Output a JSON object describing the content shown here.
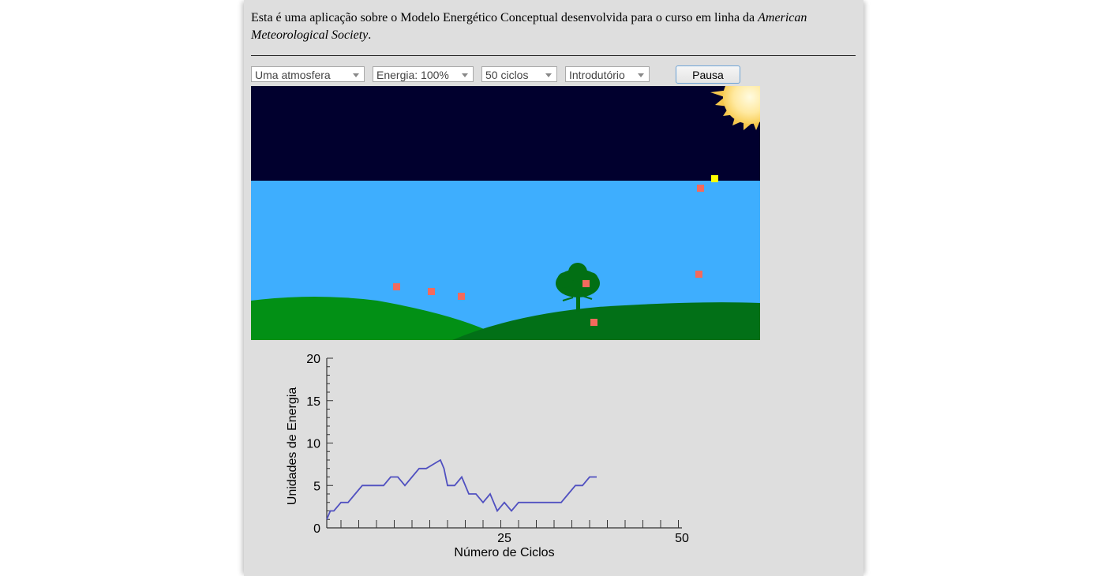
{
  "intro": {
    "text_before": "Esta é uma aplicação sobre o Modelo Energético Conceptual desenvolvida para o curso em linha da ",
    "italic": "American Meteorological Society",
    "text_after": "."
  },
  "controls": {
    "model_select": "Uma atmosfera",
    "energy_select": "Energia: 100%",
    "cycles_select": "50 ciclos",
    "level_select": "Introdutório",
    "pause_label": "Pausa"
  },
  "scene": {
    "colors": {
      "space": "#01002e",
      "atmosphere": "#3eaefe",
      "hill_light": "#029015",
      "hill_dark": "#027017",
      "packet_ir": "#f36a5d",
      "packet_solar": "#ffff00",
      "tree": "#026f14"
    },
    "packets": {
      "ir": 7,
      "solar": 1
    }
  },
  "chart_data": {
    "type": "line",
    "xlabel": "Número de Ciclos",
    "ylabel": "Unidades de Energia",
    "xlim": [
      0,
      50
    ],
    "ylim": [
      0,
      20
    ],
    "xticks": [
      25,
      50
    ],
    "yticks": [
      0,
      5,
      10,
      15,
      20
    ],
    "series": [
      {
        "color": "#5050c0",
        "x": [
          0,
          0.5,
          1,
          2,
          3,
          4,
          5,
          6,
          7,
          8,
          9,
          10,
          11,
          12,
          13,
          14,
          15,
          16,
          16.5,
          17,
          18,
          19,
          20,
          21,
          22,
          23,
          24,
          25,
          26,
          27,
          28,
          29,
          30,
          31,
          32,
          33,
          34,
          35,
          36,
          37,
          38
        ],
        "y": [
          1,
          2,
          2,
          3,
          3,
          4,
          5,
          5,
          5,
          5,
          6,
          6,
          5,
          6,
          7,
          7,
          7.5,
          8,
          7,
          5,
          5,
          6,
          4,
          4,
          3,
          4,
          2,
          3,
          2,
          3,
          3,
          3,
          3,
          3,
          3,
          3,
          4,
          5,
          5,
          6,
          6
        ]
      }
    ]
  }
}
